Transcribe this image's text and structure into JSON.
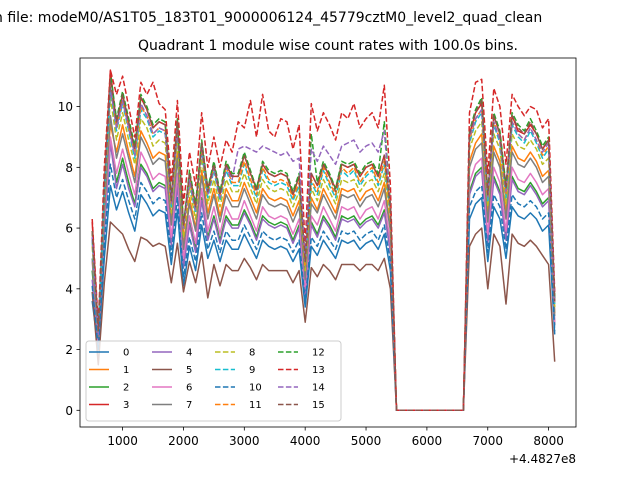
{
  "figure": {
    "suptitle": "n file: modeM0/AS1T05_183T01_9000006124_45779cztM0_level2_quad_clean",
    "title": "Quadrant 1 module wise count rates with 100.0s bins."
  },
  "chart_data": {
    "type": "line",
    "title": "Quadrant 1 module wise count rates with 100.0s bins.",
    "xlabel": "",
    "ylabel": "",
    "x_offset_label": "+4.4827e8",
    "xlim": [
      300,
      8450
    ],
    "ylim": [
      -0.55,
      11.6
    ],
    "xticks": [
      1000,
      2000,
      3000,
      4000,
      5000,
      6000,
      7000,
      8000
    ],
    "xtick_labels": [
      "1000",
      "2000",
      "3000",
      "4000",
      "5000",
      "6000",
      "7000",
      "8000"
    ],
    "yticks": [
      0,
      2,
      4,
      6,
      8,
      10
    ],
    "ytick_labels": [
      "0",
      "2",
      "4",
      "6",
      "8",
      "10"
    ],
    "legend": {
      "placement": "lower-left",
      "columns": 4
    },
    "x": [
      500,
      600,
      700,
      800,
      900,
      1000,
      1100,
      1200,
      1300,
      1400,
      1500,
      1600,
      1700,
      1800,
      1900,
      2000,
      2100,
      2200,
      2300,
      2400,
      2500,
      2600,
      2700,
      2800,
      2900,
      3000,
      3100,
      3200,
      3300,
      3400,
      3500,
      3600,
      3700,
      3800,
      3900,
      4000,
      4100,
      4200,
      4300,
      4400,
      4500,
      4600,
      4700,
      4800,
      4900,
      5000,
      5100,
      5200,
      5300,
      5400,
      5500,
      6600,
      6700,
      6800,
      6900,
      7000,
      7100,
      7200,
      7300,
      7400,
      7500,
      7600,
      7700,
      7800,
      7900,
      8000,
      8100
    ],
    "series": [
      {
        "name": "0",
        "color": "#1f77b4",
        "values": [
          3.6,
          2.0,
          5.0,
          7.4,
          6.6,
          7.2,
          6.5,
          5.9,
          7.1,
          6.8,
          6.4,
          6.6,
          6.5,
          4.8,
          6.6,
          4.1,
          5.4,
          4.6,
          6.1,
          5.0,
          5.6,
          4.9,
          5.6,
          5.3,
          5.3,
          5.8,
          5.4,
          5.0,
          5.6,
          5.4,
          5.3,
          5.4,
          5.3,
          4.9,
          5.3,
          3.4,
          5.4,
          5.1,
          5.6,
          5.3,
          5.0,
          5.6,
          5.5,
          5.6,
          5.3,
          5.5,
          5.6,
          5.3,
          5.8,
          4.6,
          0.0,
          0.0,
          6.3,
          6.8,
          7.0,
          4.9,
          6.7,
          6.3,
          5.0,
          6.7,
          6.4,
          6.3,
          6.5,
          6.3,
          5.9,
          6.1,
          2.5
        ]
      },
      {
        "name": "1",
        "color": "#ff7f0e",
        "values": [
          5.6,
          2.5,
          7.0,
          9.4,
          8.5,
          9.4,
          8.5,
          7.7,
          9.2,
          8.8,
          8.3,
          8.5,
          8.4,
          6.3,
          8.5,
          5.4,
          7.0,
          6.0,
          7.9,
          6.5,
          7.3,
          6.4,
          7.3,
          6.9,
          6.9,
          7.5,
          7.0,
          6.5,
          7.3,
          7.0,
          6.9,
          7.0,
          6.9,
          6.4,
          6.9,
          4.4,
          7.0,
          6.6,
          7.3,
          6.9,
          6.5,
          7.3,
          7.2,
          7.3,
          6.9,
          7.2,
          7.3,
          6.9,
          7.5,
          6.0,
          0.0,
          0.0,
          8.2,
          8.8,
          9.1,
          6.4,
          8.7,
          8.2,
          6.5,
          8.7,
          8.3,
          8.2,
          8.5,
          8.2,
          7.7,
          7.9,
          3.2
        ]
      },
      {
        "name": "2",
        "color": "#2ca02c",
        "values": [
          4.6,
          2.2,
          6.0,
          8.8,
          7.5,
          8.3,
          7.5,
          6.8,
          8.1,
          7.8,
          7.3,
          7.5,
          7.4,
          5.5,
          7.5,
          4.8,
          6.2,
          5.3,
          7.0,
          5.7,
          6.4,
          5.6,
          6.4,
          6.1,
          6.1,
          6.6,
          6.2,
          5.7,
          6.4,
          6.2,
          6.1,
          6.2,
          6.1,
          5.6,
          6.1,
          3.9,
          6.2,
          5.8,
          6.4,
          6.1,
          5.7,
          6.4,
          6.3,
          6.4,
          6.1,
          6.3,
          6.4,
          6.1,
          6.6,
          5.3,
          0.0,
          0.0,
          7.2,
          7.8,
          8.0,
          5.6,
          7.7,
          7.2,
          5.7,
          7.7,
          7.3,
          7.2,
          7.5,
          7.2,
          6.8,
          7.0,
          2.8
        ]
      },
      {
        "name": "3",
        "color": "#d62728",
        "values": [
          6.2,
          2.6,
          7.4,
          11.2,
          9.4,
          10.4,
          9.4,
          8.6,
          10.3,
          9.9,
          9.3,
          9.5,
          9.4,
          7.0,
          9.5,
          6.0,
          7.8,
          6.7,
          8.8,
          7.3,
          8.1,
          7.1,
          8.1,
          7.7,
          7.7,
          8.4,
          7.8,
          7.3,
          8.1,
          7.8,
          7.7,
          7.8,
          7.7,
          7.1,
          7.7,
          4.9,
          7.8,
          7.4,
          8.1,
          7.7,
          7.3,
          8.1,
          8.0,
          8.1,
          7.7,
          8.0,
          8.1,
          7.7,
          8.4,
          6.7,
          0.0,
          0.0,
          9.1,
          9.8,
          10.1,
          7.1,
          9.7,
          9.1,
          7.3,
          9.7,
          9.2,
          9.1,
          9.4,
          9.1,
          8.6,
          8.9,
          3.6
        ]
      },
      {
        "name": "4",
        "color": "#9467bd",
        "values": [
          4.3,
          2.1,
          5.8,
          8.8,
          7.3,
          8.1,
          7.3,
          6.7,
          8.0,
          7.7,
          7.2,
          7.4,
          7.3,
          5.4,
          7.4,
          4.7,
          6.1,
          5.2,
          6.9,
          5.6,
          6.3,
          5.5,
          6.3,
          6.0,
          6.0,
          6.5,
          6.1,
          5.6,
          6.3,
          6.1,
          6.0,
          6.1,
          6.0,
          5.5,
          6.0,
          3.8,
          6.1,
          5.7,
          6.3,
          6.0,
          5.6,
          6.3,
          6.2,
          6.3,
          6.0,
          6.2,
          6.3,
          6.0,
          6.5,
          5.2,
          0.0,
          0.0,
          7.1,
          7.7,
          7.9,
          5.5,
          7.6,
          7.1,
          5.6,
          7.6,
          7.2,
          7.1,
          7.4,
          7.1,
          6.7,
          6.9,
          2.8
        ]
      },
      {
        "name": "5",
        "color": "#8c564b",
        "values": [
          3.9,
          1.5,
          4.2,
          6.2,
          6.0,
          5.8,
          5.3,
          4.9,
          5.7,
          5.6,
          5.4,
          5.5,
          5.4,
          4.2,
          5.5,
          3.9,
          4.9,
          4.2,
          5.2,
          3.7,
          4.8,
          4.1,
          4.8,
          4.6,
          4.6,
          5.0,
          4.7,
          4.3,
          4.8,
          4.6,
          4.6,
          4.6,
          4.6,
          4.2,
          4.6,
          2.9,
          4.7,
          4.4,
          4.8,
          4.6,
          4.3,
          4.8,
          4.8,
          4.8,
          4.6,
          4.8,
          4.8,
          4.6,
          5.0,
          4.0,
          0.0,
          0.0,
          5.4,
          5.8,
          6.0,
          4.0,
          5.8,
          5.4,
          3.5,
          5.8,
          5.5,
          5.4,
          5.6,
          5.4,
          5.1,
          4.8,
          1.6
        ]
      },
      {
        "name": "6",
        "color": "#e377c2",
        "values": [
          4.9,
          2.3,
          6.2,
          9.0,
          7.8,
          8.6,
          7.8,
          7.1,
          8.5,
          8.1,
          7.6,
          7.8,
          7.7,
          5.7,
          7.8,
          5.0,
          6.4,
          5.5,
          7.3,
          5.9,
          6.7,
          5.8,
          6.7,
          6.3,
          6.3,
          6.9,
          6.4,
          5.9,
          6.7,
          6.4,
          6.3,
          6.4,
          6.3,
          5.8,
          6.3,
          4.0,
          6.4,
          6.1,
          6.7,
          6.3,
          5.9,
          6.7,
          6.6,
          6.7,
          6.3,
          6.6,
          6.7,
          6.3,
          6.9,
          5.5,
          0.0,
          0.0,
          7.5,
          8.1,
          8.3,
          5.8,
          8.0,
          7.5,
          5.9,
          8.0,
          7.6,
          7.5,
          7.8,
          7.5,
          7.1,
          7.3,
          2.9
        ]
      },
      {
        "name": "7",
        "color": "#7f7f7f",
        "values": [
          5.0,
          2.4,
          6.4,
          9.7,
          8.3,
          9.1,
          8.3,
          7.5,
          9.0,
          8.6,
          8.1,
          8.3,
          8.2,
          6.1,
          8.3,
          5.3,
          6.8,
          5.9,
          7.7,
          6.3,
          7.1,
          6.2,
          7.1,
          6.7,
          6.7,
          7.3,
          6.8,
          6.3,
          7.1,
          6.8,
          6.7,
          6.8,
          6.7,
          6.2,
          6.7,
          4.3,
          6.8,
          6.5,
          7.1,
          6.7,
          6.3,
          7.1,
          7.0,
          7.1,
          6.7,
          7.0,
          7.1,
          6.7,
          7.3,
          5.9,
          0.0,
          0.0,
          8.0,
          8.6,
          8.8,
          6.2,
          8.5,
          8.0,
          6.3,
          8.5,
          8.1,
          8.0,
          8.3,
          8.0,
          7.5,
          7.7,
          3.1
        ]
      },
      {
        "name": "8",
        "color": "#bcbd22",
        "dashed": true,
        "values": [
          5.4,
          2.5,
          6.9,
          10.3,
          8.9,
          9.8,
          8.9,
          8.1,
          9.6,
          9.3,
          8.7,
          8.9,
          8.8,
          6.5,
          8.9,
          5.7,
          7.3,
          6.3,
          8.3,
          6.8,
          7.6,
          6.7,
          7.6,
          7.2,
          7.2,
          7.8,
          7.3,
          6.8,
          7.6,
          7.3,
          7.2,
          7.3,
          7.2,
          6.7,
          7.2,
          4.6,
          7.3,
          6.9,
          7.6,
          7.2,
          6.8,
          7.6,
          7.5,
          7.6,
          7.2,
          7.5,
          7.6,
          7.2,
          7.8,
          6.3,
          0.0,
          0.0,
          8.6,
          9.2,
          9.5,
          6.7,
          9.1,
          8.6,
          6.8,
          9.1,
          8.7,
          8.6,
          8.9,
          8.6,
          8.1,
          8.3,
          3.4
        ]
      },
      {
        "name": "9",
        "color": "#17becf",
        "dashed": true,
        "values": [
          5.6,
          2.5,
          7.1,
          10.6,
          9.2,
          10.1,
          9.2,
          8.3,
          9.9,
          9.6,
          9.0,
          9.2,
          9.1,
          6.7,
          9.2,
          5.9,
          7.5,
          6.5,
          8.5,
          7.0,
          7.9,
          6.9,
          7.9,
          7.4,
          7.4,
          8.1,
          7.5,
          7.0,
          7.9,
          7.5,
          7.4,
          7.5,
          7.4,
          6.9,
          7.4,
          4.8,
          7.5,
          7.1,
          7.9,
          7.4,
          7.0,
          7.9,
          7.7,
          7.9,
          7.4,
          7.7,
          7.9,
          7.4,
          8.1,
          6.5,
          0.0,
          0.0,
          8.8,
          9.5,
          9.8,
          6.9,
          9.4,
          8.8,
          7.0,
          9.4,
          9.0,
          8.8,
          9.2,
          8.8,
          8.3,
          8.6,
          3.5
        ]
      },
      {
        "name": "10",
        "color": "#1f77b4",
        "dashed": true,
        "values": [
          4.1,
          2.0,
          5.5,
          8.1,
          7.0,
          7.6,
          6.9,
          6.3,
          7.5,
          7.2,
          6.8,
          7.0,
          6.9,
          5.1,
          7.0,
          4.4,
          5.7,
          4.9,
          6.5,
          5.3,
          5.9,
          5.2,
          5.9,
          5.6,
          5.6,
          6.1,
          5.7,
          5.3,
          5.9,
          5.7,
          5.6,
          5.7,
          5.6,
          5.2,
          5.6,
          3.6,
          5.7,
          5.4,
          5.9,
          5.6,
          5.3,
          5.9,
          5.8,
          5.9,
          5.6,
          5.8,
          5.9,
          5.6,
          6.1,
          4.9,
          0.0,
          0.0,
          6.7,
          7.2,
          7.4,
          5.2,
          7.1,
          6.7,
          5.3,
          7.1,
          6.8,
          6.7,
          6.9,
          6.7,
          6.3,
          6.5,
          2.6
        ]
      },
      {
        "name": "11",
        "color": "#ff7f0e",
        "dashed": true,
        "values": [
          5.9,
          2.6,
          7.1,
          10.9,
          9.3,
          10.2,
          9.3,
          8.5,
          10.0,
          9.7,
          9.1,
          9.3,
          9.2,
          6.8,
          9.3,
          5.9,
          7.6,
          6.6,
          8.6,
          7.1,
          8.0,
          7.0,
          8.0,
          7.5,
          7.5,
          8.2,
          7.6,
          7.1,
          8.0,
          7.6,
          7.5,
          7.6,
          7.5,
          7.0,
          7.5,
          4.8,
          7.6,
          7.2,
          8.0,
          7.5,
          7.1,
          8.0,
          7.8,
          8.0,
          7.5,
          7.8,
          8.0,
          7.5,
          8.2,
          6.6,
          0.0,
          0.0,
          8.9,
          9.6,
          9.9,
          7.0,
          9.5,
          8.9,
          7.1,
          9.5,
          9.1,
          8.9,
          9.3,
          8.9,
          8.4,
          8.7,
          3.5
        ]
      },
      {
        "name": "12",
        "color": "#2ca02c",
        "dashed": true,
        "values": [
          5.9,
          2.6,
          7.4,
          11.1,
          9.6,
          10.5,
          9.6,
          8.7,
          10.4,
          10.0,
          9.4,
          9.6,
          9.5,
          7.0,
          9.6,
          6.1,
          7.9,
          6.8,
          8.9,
          7.3,
          8.2,
          7.2,
          8.2,
          7.8,
          7.8,
          8.5,
          7.9,
          7.3,
          8.2,
          7.9,
          7.8,
          7.9,
          7.8,
          7.2,
          7.8,
          5.0,
          9.1,
          7.5,
          8.2,
          7.8,
          7.3,
          8.2,
          8.1,
          8.2,
          7.8,
          8.1,
          8.2,
          7.8,
          9.5,
          6.8,
          0.0,
          0.0,
          9.2,
          9.9,
          10.3,
          7.2,
          9.8,
          9.2,
          7.4,
          9.8,
          9.4,
          9.2,
          9.6,
          9.2,
          8.7,
          9.0,
          3.7
        ]
      },
      {
        "name": "13",
        "color": "#d62728",
        "dashed": true,
        "values": [
          6.3,
          2.8,
          8.0,
          11.2,
          10.4,
          11.0,
          10.0,
          9.0,
          10.8,
          10.4,
          10.8,
          10.1,
          9.9,
          7.5,
          10.2,
          6.8,
          8.5,
          7.4,
          9.8,
          8.0,
          9.0,
          8.0,
          8.9,
          8.5,
          9.5,
          9.3,
          10.2,
          9.0,
          10.4,
          9.2,
          9.0,
          9.6,
          9.5,
          8.6,
          9.4,
          5.4,
          10.1,
          9.2,
          9.8,
          9.4,
          8.9,
          9.8,
          9.6,
          10.1,
          9.3,
          9.6,
          9.8,
          9.3,
          10.7,
          7.4,
          0.0,
          0.0,
          9.8,
          10.8,
          10.9,
          7.8,
          10.6,
          10.0,
          8.1,
          10.4,
          10.0,
          9.7,
          10.0,
          9.9,
          9.3,
          9.6,
          3.9
        ]
      },
      {
        "name": "14",
        "color": "#9467bd",
        "dashed": true,
        "values": [
          5.7,
          2.5,
          7.2,
          10.6,
          9.3,
          10.2,
          9.3,
          8.4,
          10.1,
          9.7,
          9.1,
          9.3,
          9.2,
          6.8,
          9.3,
          6.0,
          7.6,
          6.6,
          8.7,
          7.1,
          8.0,
          7.0,
          8.0,
          7.6,
          8.6,
          8.7,
          8.6,
          8.5,
          8.7,
          8.6,
          8.5,
          8.4,
          8.5,
          8.2,
          8.3,
          4.9,
          8.6,
          8.2,
          8.7,
          8.4,
          8.1,
          8.7,
          8.8,
          8.9,
          8.5,
          8.7,
          8.8,
          8.5,
          9.2,
          6.7,
          0.0,
          0.0,
          9.0,
          9.6,
          9.9,
          7.0,
          9.5,
          8.9,
          7.2,
          9.5,
          9.1,
          8.9,
          9.3,
          8.9,
          8.5,
          8.8,
          3.5
        ]
      },
      {
        "name": "15",
        "color": "#8c564b",
        "dashed": true,
        "values": [
          5.9,
          2.6,
          7.3,
          10.9,
          9.5,
          10.4,
          9.5,
          8.6,
          10.3,
          9.9,
          9.3,
          9.5,
          9.4,
          6.9,
          9.5,
          6.1,
          7.8,
          6.7,
          8.8,
          7.2,
          8.1,
          7.1,
          8.1,
          7.7,
          7.7,
          8.4,
          7.8,
          7.2,
          8.1,
          7.8,
          7.7,
          7.8,
          7.7,
          7.1,
          7.7,
          4.9,
          7.8,
          7.4,
          8.1,
          7.7,
          7.2,
          8.1,
          8.0,
          8.1,
          7.7,
          8.0,
          8.1,
          7.7,
          8.4,
          6.7,
          0.0,
          0.0,
          9.1,
          9.8,
          10.2,
          7.1,
          9.7,
          9.1,
          7.3,
          9.7,
          9.3,
          9.1,
          9.5,
          9.1,
          8.6,
          8.9,
          3.6
        ]
      }
    ]
  }
}
